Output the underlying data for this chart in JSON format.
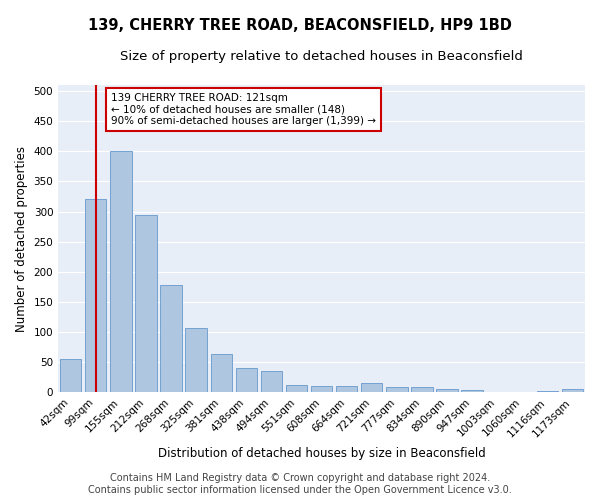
{
  "title": "139, CHERRY TREE ROAD, BEACONSFIELD, HP9 1BD",
  "subtitle": "Size of property relative to detached houses in Beaconsfield",
  "xlabel": "Distribution of detached houses by size in Beaconsfield",
  "ylabel": "Number of detached properties",
  "footer_line1": "Contains HM Land Registry data © Crown copyright and database right 2024.",
  "footer_line2": "Contains public sector information licensed under the Open Government Licence v3.0.",
  "categories": [
    "42sqm",
    "99sqm",
    "155sqm",
    "212sqm",
    "268sqm",
    "325sqm",
    "381sqm",
    "438sqm",
    "494sqm",
    "551sqm",
    "608sqm",
    "664sqm",
    "721sqm",
    "777sqm",
    "834sqm",
    "890sqm",
    "947sqm",
    "1003sqm",
    "1060sqm",
    "1116sqm",
    "1173sqm"
  ],
  "values": [
    55,
    320,
    400,
    295,
    178,
    107,
    63,
    40,
    35,
    12,
    11,
    11,
    16,
    9,
    8,
    5,
    3,
    0,
    0,
    2,
    5
  ],
  "bar_color": "#aec6e0",
  "bar_edge_color": "#6699cc",
  "vline_x": 1,
  "vline_color": "#cc0000",
  "annotation_text": "139 CHERRY TREE ROAD: 121sqm\n← 10% of detached houses are smaller (148)\n90% of semi-detached houses are larger (1,399) →",
  "annotation_box_color": "#ffffff",
  "annotation_box_edge": "#cc0000",
  "ylim": [
    0,
    510
  ],
  "yticks": [
    0,
    50,
    100,
    150,
    200,
    250,
    300,
    350,
    400,
    450,
    500
  ],
  "bg_color": "#e8eef8",
  "grid_color": "#ffffff",
  "title_fontsize": 10.5,
  "subtitle_fontsize": 9.5,
  "axis_label_fontsize": 8.5,
  "tick_fontsize": 7.5,
  "footer_fontsize": 7
}
